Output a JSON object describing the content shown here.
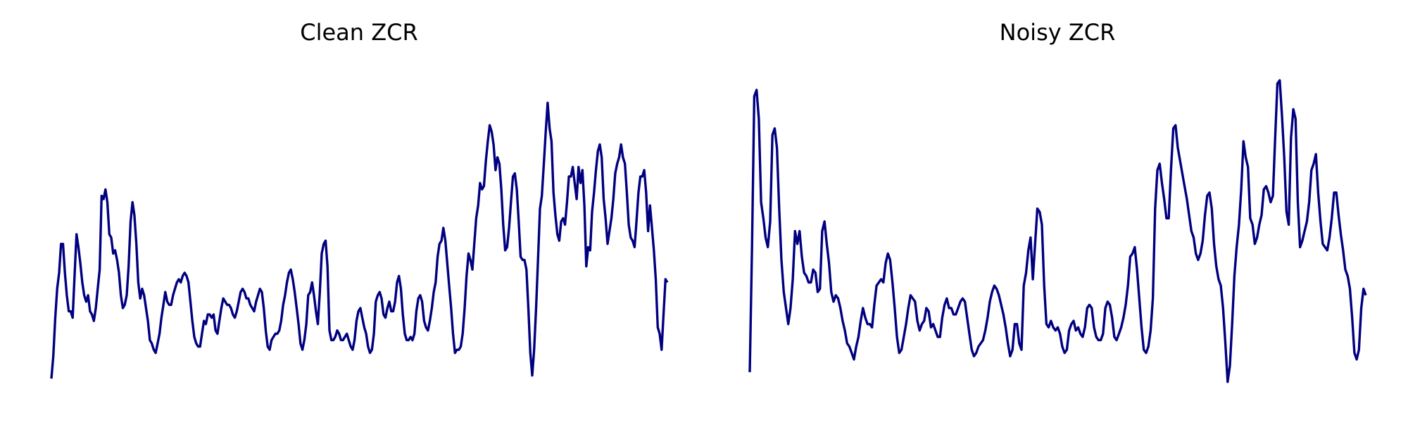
{
  "colors": {
    "line": "#000080",
    "background": "#ffffff"
  },
  "chart_data": [
    {
      "type": "line",
      "title": "Clean ZCR",
      "axes_visible": false,
      "grid": false,
      "ylim": [
        0,
        1
      ],
      "series": [
        {
          "values": [
            0.03,
            0.1,
            0.22,
            0.31,
            0.36,
            0.45,
            0.45,
            0.36,
            0.29,
            0.24,
            0.24,
            0.22,
            0.35,
            0.48,
            0.44,
            0.39,
            0.33,
            0.29,
            0.27,
            0.29,
            0.24,
            0.23,
            0.21,
            0.25,
            0.31,
            0.37,
            0.6,
            0.59,
            0.62,
            0.58,
            0.48,
            0.47,
            0.42,
            0.43,
            0.4,
            0.36,
            0.29,
            0.25,
            0.26,
            0.29,
            0.38,
            0.52,
            0.58,
            0.54,
            0.45,
            0.33,
            0.28,
            0.31,
            0.29,
            0.25,
            0.21,
            0.15,
            0.14,
            0.12,
            0.11,
            0.14,
            0.17,
            0.22,
            0.26,
            0.3,
            0.27,
            0.26,
            0.26,
            0.29,
            0.31,
            0.33,
            0.34,
            0.33,
            0.35,
            0.36,
            0.35,
            0.33,
            0.27,
            0.21,
            0.16,
            0.14,
            0.13,
            0.13,
            0.17,
            0.21,
            0.2,
            0.23,
            0.23,
            0.22,
            0.23,
            0.18,
            0.17,
            0.21,
            0.25,
            0.28,
            0.27,
            0.26,
            0.26,
            0.25,
            0.23,
            0.22,
            0.24,
            0.27,
            0.3,
            0.31,
            0.3,
            0.28,
            0.28,
            0.26,
            0.25,
            0.24,
            0.27,
            0.29,
            0.31,
            0.3,
            0.25,
            0.18,
            0.13,
            0.12,
            0.15,
            0.16,
            0.17,
            0.17,
            0.18,
            0.21,
            0.26,
            0.29,
            0.33,
            0.36,
            0.37,
            0.34,
            0.3,
            0.25,
            0.2,
            0.14,
            0.12,
            0.15,
            0.2,
            0.29,
            0.3,
            0.33,
            0.29,
            0.24,
            0.2,
            0.3,
            0.42,
            0.45,
            0.46,
            0.38,
            0.18,
            0.15,
            0.15,
            0.16,
            0.18,
            0.17,
            0.15,
            0.15,
            0.16,
            0.17,
            0.15,
            0.13,
            0.12,
            0.15,
            0.21,
            0.24,
            0.25,
            0.22,
            0.19,
            0.17,
            0.13,
            0.11,
            0.12,
            0.17,
            0.27,
            0.29,
            0.3,
            0.28,
            0.23,
            0.22,
            0.25,
            0.27,
            0.24,
            0.24,
            0.27,
            0.33,
            0.35,
            0.31,
            0.23,
            0.17,
            0.15,
            0.15,
            0.16,
            0.15,
            0.17,
            0.24,
            0.28,
            0.29,
            0.27,
            0.21,
            0.19,
            0.18,
            0.21,
            0.25,
            0.3,
            0.33,
            0.41,
            0.45,
            0.46,
            0.5,
            0.46,
            0.39,
            0.32,
            0.25,
            0.17,
            0.11,
            0.12,
            0.12,
            0.13,
            0.17,
            0.25,
            0.35,
            0.42,
            0.4,
            0.37,
            0.45,
            0.53,
            0.57,
            0.64,
            0.62,
            0.63,
            0.71,
            0.77,
            0.82,
            0.8,
            0.76,
            0.68,
            0.72,
            0.7,
            0.62,
            0.51,
            0.43,
            0.44,
            0.5,
            0.58,
            0.66,
            0.67,
            0.62,
            0.52,
            0.41,
            0.4,
            0.4,
            0.37,
            0.25,
            0.11,
            0.04,
            0.12,
            0.25,
            0.4,
            0.56,
            0.6,
            0.7,
            0.8,
            0.89,
            0.81,
            0.77,
            0.61,
            0.54,
            0.48,
            0.46,
            0.52,
            0.53,
            0.51,
            0.58,
            0.66,
            0.66,
            0.69,
            0.64,
            0.59,
            0.69,
            0.64,
            0.68,
            0.57,
            0.38,
            0.44,
            0.43,
            0.55,
            0.61,
            0.68,
            0.74,
            0.76,
            0.72,
            0.59,
            0.53,
            0.45,
            0.49,
            0.53,
            0.59,
            0.67,
            0.7,
            0.72,
            0.76,
            0.72,
            0.7,
            0.61,
            0.51,
            0.47,
            0.46,
            0.44,
            0.52,
            0.61,
            0.66,
            0.66,
            0.68,
            0.61,
            0.49,
            0.57,
            0.5,
            0.43,
            0.34,
            0.19,
            0.17,
            0.12,
            0.23,
            0.34,
            0.33
          ]
        }
      ]
    },
    {
      "type": "line",
      "title": "Noisy ZCR",
      "axes_visible": false,
      "grid": false,
      "ylim": [
        0,
        1
      ],
      "series": [
        {
          "values": [
            0.05,
            0.44,
            0.91,
            0.93,
            0.84,
            0.58,
            0.53,
            0.47,
            0.44,
            0.52,
            0.79,
            0.81,
            0.75,
            0.56,
            0.4,
            0.3,
            0.25,
            0.2,
            0.25,
            0.34,
            0.49,
            0.45,
            0.49,
            0.41,
            0.36,
            0.35,
            0.33,
            0.33,
            0.37,
            0.36,
            0.3,
            0.31,
            0.49,
            0.52,
            0.45,
            0.39,
            0.3,
            0.27,
            0.29,
            0.28,
            0.25,
            0.21,
            0.18,
            0.14,
            0.13,
            0.11,
            0.09,
            0.13,
            0.16,
            0.21,
            0.25,
            0.22,
            0.2,
            0.2,
            0.19,
            0.26,
            0.32,
            0.33,
            0.34,
            0.33,
            0.39,
            0.42,
            0.4,
            0.33,
            0.25,
            0.16,
            0.11,
            0.12,
            0.16,
            0.2,
            0.25,
            0.29,
            0.28,
            0.27,
            0.21,
            0.18,
            0.2,
            0.21,
            0.25,
            0.24,
            0.19,
            0.2,
            0.18,
            0.16,
            0.16,
            0.22,
            0.26,
            0.28,
            0.25,
            0.25,
            0.23,
            0.23,
            0.25,
            0.27,
            0.28,
            0.27,
            0.22,
            0.17,
            0.12,
            0.1,
            0.11,
            0.13,
            0.14,
            0.15,
            0.18,
            0.22,
            0.27,
            0.3,
            0.32,
            0.31,
            0.29,
            0.26,
            0.23,
            0.19,
            0.14,
            0.1,
            0.12,
            0.2,
            0.2,
            0.14,
            0.12,
            0.32,
            0.36,
            0.43,
            0.47,
            0.34,
            0.45,
            0.56,
            0.55,
            0.51,
            0.32,
            0.2,
            0.19,
            0.21,
            0.19,
            0.18,
            0.19,
            0.17,
            0.13,
            0.11,
            0.12,
            0.18,
            0.2,
            0.21,
            0.18,
            0.19,
            0.17,
            0.16,
            0.19,
            0.25,
            0.26,
            0.25,
            0.19,
            0.16,
            0.15,
            0.15,
            0.17,
            0.25,
            0.27,
            0.26,
            0.22,
            0.16,
            0.15,
            0.17,
            0.19,
            0.22,
            0.26,
            0.32,
            0.41,
            0.42,
            0.44,
            0.37,
            0.28,
            0.19,
            0.12,
            0.11,
            0.13,
            0.18,
            0.28,
            0.56,
            0.68,
            0.7,
            0.64,
            0.59,
            0.53,
            0.53,
            0.68,
            0.81,
            0.82,
            0.75,
            0.71,
            0.67,
            0.63,
            0.59,
            0.54,
            0.49,
            0.47,
            0.42,
            0.4,
            0.42,
            0.46,
            0.54,
            0.6,
            0.61,
            0.56,
            0.45,
            0.38,
            0.34,
            0.32,
            0.25,
            0.14,
            0.02,
            0.07,
            0.2,
            0.35,
            0.44,
            0.51,
            0.62,
            0.77,
            0.72,
            0.69,
            0.53,
            0.51,
            0.45,
            0.47,
            0.51,
            0.54,
            0.62,
            0.63,
            0.61,
            0.58,
            0.6,
            0.78,
            0.95,
            0.96,
            0.85,
            0.72,
            0.55,
            0.51,
            0.78,
            0.87,
            0.84,
            0.58,
            0.44,
            0.46,
            0.49,
            0.52,
            0.58,
            0.68,
            0.7,
            0.73,
            0.61,
            0.52,
            0.45,
            0.44,
            0.43,
            0.47,
            0.53,
            0.61,
            0.61,
            0.54,
            0.48,
            0.43,
            0.37,
            0.35,
            0.31,
            0.22,
            0.11,
            0.09,
            0.12,
            0.25,
            0.31,
            0.29
          ]
        }
      ]
    }
  ]
}
